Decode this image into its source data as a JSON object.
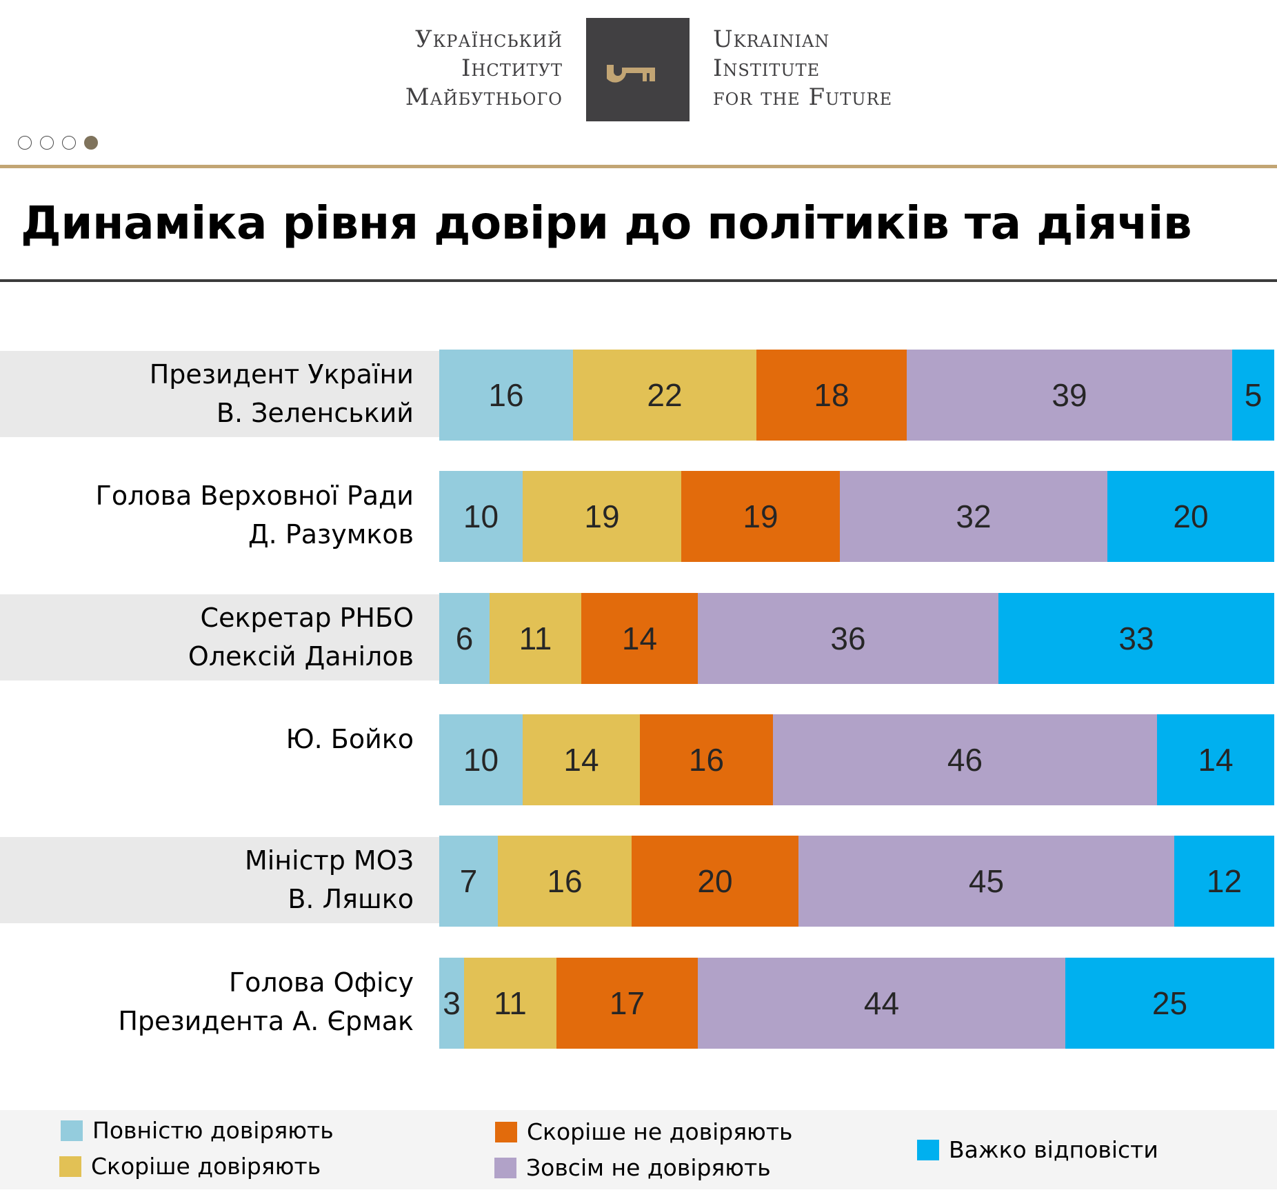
{
  "header": {
    "logo_ua_lines": [
      "Український",
      "Інститут",
      "Майбутнього"
    ],
    "logo_en_lines": [
      "Ukrainian",
      "Institute",
      "for the Future"
    ],
    "logo_icon": "key-icon",
    "logo_box_color": "#414042",
    "logo_key_color": "#C2A574"
  },
  "pager": {
    "total": 4,
    "active_index": 3
  },
  "page_title": "Динаміка рівня довіри до політиків та діячів",
  "chart_data": {
    "type": "bar",
    "orientation": "horizontal",
    "stacked": true,
    "title": "Динаміка рівня довіри до політиків та діячів",
    "xlabel": "",
    "ylabel": "",
    "xlim": [
      0,
      100
    ],
    "grid": false,
    "legend_position": "bottom",
    "categories": [
      [
        "Президент України",
        "В. Зеленський"
      ],
      [
        "Голова Верховної Ради",
        "Д. Разумков"
      ],
      [
        "Секретар РНБО",
        "Олексій Данілов"
      ],
      [
        "Ю. Бойко"
      ],
      [
        "Міністр МОЗ",
        "В. Ляшко"
      ],
      [
        "Голова Офісу",
        "Президента А. Єрмак"
      ]
    ],
    "series": [
      {
        "name": "Повністю довіряють",
        "color": "#94CCDD",
        "values": [
          16,
          10,
          6,
          10,
          7,
          3
        ]
      },
      {
        "name": "Скоріше довіряють",
        "color": "#E2C155",
        "values": [
          22,
          19,
          11,
          14,
          16,
          11
        ]
      },
      {
        "name": "Скоріше не довіряють",
        "color": "#E26B0C",
        "values": [
          18,
          19,
          14,
          16,
          20,
          17
        ]
      },
      {
        "name": "Зовсім не довіряють",
        "color": "#B1A2C8",
        "values": [
          39,
          32,
          36,
          46,
          45,
          44
        ]
      },
      {
        "name": "Важко відповісти",
        "color": "#00B0EF",
        "values": [
          5,
          20,
          33,
          14,
          12,
          25
        ]
      }
    ],
    "row_band_shaded": [
      true,
      false,
      true,
      false,
      true,
      false
    ]
  },
  "legend": {
    "items": [
      {
        "label": "Повністю довіряють",
        "color": "#94CCDD"
      },
      {
        "label": "Скоріше довіряють",
        "color": "#E2C155"
      },
      {
        "label": "Скоріше не довіряють",
        "color": "#E26B0C"
      },
      {
        "label": "Зовсім не довіряють",
        "color": "#B1A2C8"
      },
      {
        "label": "Важко відповісти",
        "color": "#00B0EF"
      }
    ]
  }
}
